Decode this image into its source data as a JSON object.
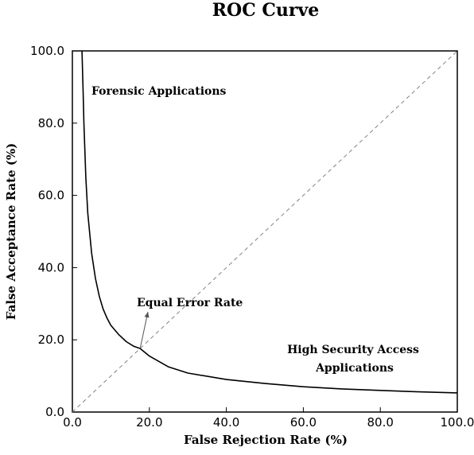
{
  "chart_data": {
    "type": "line",
    "title": "ROC Curve",
    "xlabel": "False Rejection Rate (%)",
    "ylabel": "False Acceptance Rate (%)",
    "xlim": [
      0,
      100
    ],
    "ylim": [
      0,
      100
    ],
    "xticks": [
      "0.0",
      "20.0",
      "40.0",
      "60.0",
      "80.0",
      "100.0"
    ],
    "yticks": [
      "0.0",
      "20.0",
      "40.0",
      "60.0",
      "80.0",
      "100.0"
    ],
    "grid": false,
    "series": [
      {
        "style": "solid",
        "x": [
          2.5,
          2.8,
          3.0,
          3.5,
          4.0,
          5.0,
          6.0,
          7.0,
          8.0,
          9.0,
          10.0,
          12.0,
          14.0,
          16.0,
          17.6,
          20.0,
          25.0,
          30.0,
          40.0,
          50.0,
          60.0,
          70.0,
          80.0,
          90.0,
          100.0
        ],
        "y": [
          100.0,
          88.0,
          80.0,
          65.0,
          55.0,
          44.0,
          37.0,
          32.0,
          28.5,
          26.0,
          24.0,
          21.5,
          19.5,
          18.2,
          17.6,
          15.5,
          12.5,
          10.8,
          9.0,
          7.9,
          7.0,
          6.4,
          6.0,
          5.6,
          5.3
        ]
      },
      {
        "style": "dashed",
        "x": [
          0,
          100
        ],
        "y": [
          0,
          100
        ]
      }
    ],
    "annotations": {
      "forensic": "Forensic Applications",
      "eer": "Equal Error Rate",
      "high_security_line1": "High Security Access",
      "high_security_line2": "Applications"
    },
    "eer_point": [
      17.6,
      17.6
    ],
    "colors": {
      "curve": "#000000",
      "diagonal": "#777777",
      "axes": "#000000"
    }
  }
}
